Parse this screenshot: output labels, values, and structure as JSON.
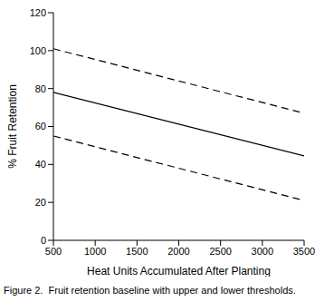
{
  "chart_data": {
    "type": "line",
    "title": "Figure 2.  Fruit retention baseline with upper and lower thresholds.",
    "x_label": "Heat Units Accumulated After Planting",
    "y_label": "% Fruit Retention",
    "x": [
      500,
      3500
    ],
    "series": [
      {
        "color": "#000000",
        "line_style": "dashed",
        "values": [
          101,
          67
        ]
      },
      {
        "color": "#000000",
        "line_style": "solid",
        "values": [
          78,
          44.5
        ]
      },
      {
        "color": "#000000",
        "line_style": "dashed",
        "values": [
          55,
          21
        ]
      }
    ],
    "xlim": [
      500,
      3500
    ],
    "xticks": [
      500,
      1000,
      1500,
      2000,
      2500,
      3000,
      3500
    ],
    "ylim": [
      0,
      120
    ],
    "yticks": [
      0,
      20,
      40,
      60,
      80,
      100,
      120
    ]
  }
}
